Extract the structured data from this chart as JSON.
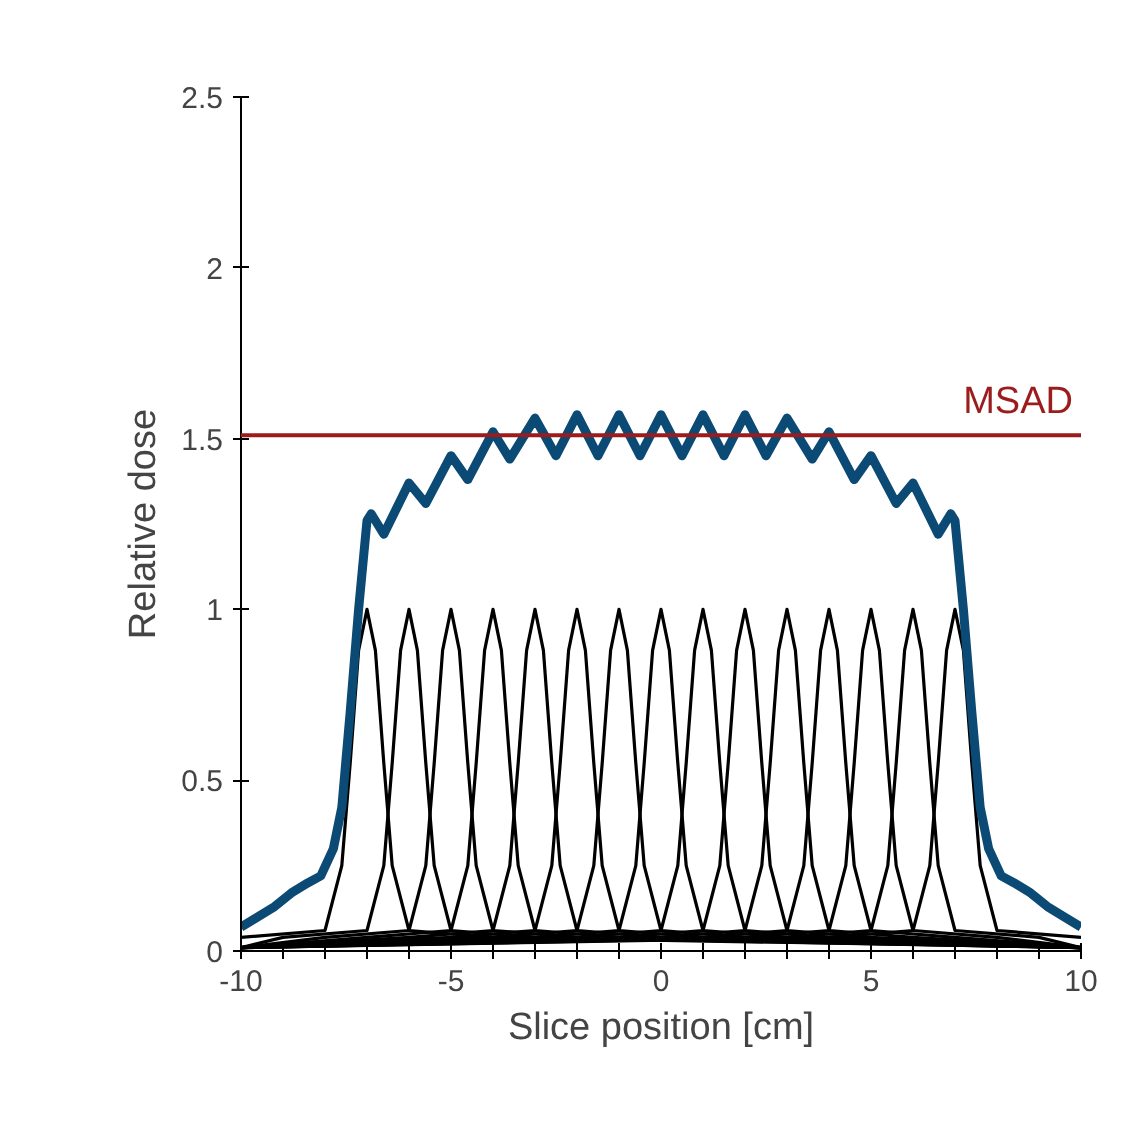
{
  "chart_data": {
    "type": "line",
    "xlabel": "Slice position [cm]",
    "ylabel": "Relative dose",
    "xlim": [
      -10,
      10
    ],
    "ylim": [
      0,
      2.5
    ],
    "xticks": [
      -10,
      {
        "value": -9,
        "label": null
      },
      {
        "value": -8,
        "label": null
      },
      {
        "value": -7,
        "label": null
      },
      {
        "value": -6,
        "label": null
      },
      -5,
      {
        "value": -4,
        "label": null
      },
      {
        "value": -3,
        "label": null
      },
      {
        "value": -2,
        "label": null
      },
      {
        "value": -1,
        "label": null
      },
      0,
      {
        "value": 1,
        "label": null
      },
      {
        "value": 2,
        "label": null
      },
      {
        "value": 3,
        "label": null
      },
      {
        "value": 4,
        "label": null
      },
      5,
      {
        "value": 6,
        "label": null
      },
      {
        "value": 7,
        "label": null
      },
      {
        "value": 8,
        "label": null
      },
      {
        "value": 9,
        "label": null
      },
      10
    ],
    "yticks": [
      0,
      0.5,
      1,
      1.5,
      2,
      2.5
    ],
    "marker": "none",
    "line_style": "solid",
    "ref_lines": [
      {
        "axis": "y",
        "value": 1.51,
        "label": "MSAD",
        "color": "#9b1c1c"
      }
    ],
    "series": [
      {
        "color": "#000000",
        "x": [
          -10,
          -8,
          -7.6,
          -7.4,
          -7.2,
          -7,
          -6.8,
          -6.6,
          -6.4,
          -6,
          -4,
          10
        ],
        "values": [
          0.04,
          0.06,
          0.25,
          0.55,
          0.88,
          1,
          0.88,
          0.55,
          0.25,
          0.06,
          0.04,
          0.01
        ]
      },
      {
        "color": "#000000",
        "x": [
          -10,
          -9,
          -7,
          -6.6,
          -6.4,
          -6.2,
          -6,
          -5.8,
          -5.6,
          -5.4,
          -5,
          -3,
          10
        ],
        "values": [
          0.01,
          0.04,
          0.06,
          0.25,
          0.55,
          0.88,
          1,
          0.88,
          0.55,
          0.25,
          0.06,
          0.04,
          0.01
        ]
      },
      {
        "color": "#000000",
        "x": [
          -10,
          -8,
          -6,
          -5.6,
          -5.4,
          -5.2,
          -5,
          -4.8,
          -4.6,
          -4.4,
          -4,
          -2,
          10
        ],
        "values": [
          0.01,
          0.04,
          0.06,
          0.25,
          0.55,
          0.88,
          1,
          0.88,
          0.55,
          0.25,
          0.06,
          0.04,
          0.01
        ]
      },
      {
        "color": "#000000",
        "x": [
          -10,
          -7,
          -5,
          -4.6,
          -4.4,
          -4.2,
          -4,
          -3.8,
          -3.6,
          -3.4,
          -3,
          -1,
          10
        ],
        "values": [
          0.01,
          0.04,
          0.06,
          0.25,
          0.55,
          0.88,
          1,
          0.88,
          0.55,
          0.25,
          0.06,
          0.04,
          0.01
        ]
      },
      {
        "color": "#000000",
        "x": [
          -10,
          -6,
          -4,
          -3.6,
          -3.4,
          -3.2,
          -3,
          -2.8,
          -2.6,
          -2.4,
          -2,
          0,
          10
        ],
        "values": [
          0.01,
          0.04,
          0.06,
          0.25,
          0.55,
          0.88,
          1,
          0.88,
          0.55,
          0.25,
          0.06,
          0.04,
          0.01
        ]
      },
      {
        "color": "#000000",
        "x": [
          -10,
          -5,
          -3,
          -2.6,
          -2.4,
          -2.2,
          -2,
          -1.8,
          -1.6,
          -1.4,
          -1,
          1,
          10
        ],
        "values": [
          0.01,
          0.04,
          0.06,
          0.25,
          0.55,
          0.88,
          1,
          0.88,
          0.55,
          0.25,
          0.06,
          0.04,
          0.01
        ]
      },
      {
        "color": "#000000",
        "x": [
          -10,
          -4,
          -2,
          -1.6,
          -1.4,
          -1.2,
          -1,
          -0.8,
          -0.6,
          -0.4,
          0,
          2,
          10
        ],
        "values": [
          0.01,
          0.04,
          0.06,
          0.25,
          0.55,
          0.88,
          1,
          0.88,
          0.55,
          0.25,
          0.06,
          0.04,
          0.01
        ]
      },
      {
        "color": "#000000",
        "x": [
          -10,
          -3,
          -1,
          -0.6,
          -0.4,
          -0.2,
          0,
          0.2,
          0.4,
          0.6,
          1,
          3,
          10
        ],
        "values": [
          0.01,
          0.04,
          0.06,
          0.25,
          0.55,
          0.88,
          1,
          0.88,
          0.55,
          0.25,
          0.06,
          0.04,
          0.01
        ]
      },
      {
        "color": "#000000",
        "x": [
          -10,
          -2,
          0,
          0.4,
          0.6,
          0.8,
          1,
          1.2,
          1.4,
          1.6,
          2,
          4,
          10
        ],
        "values": [
          0.01,
          0.04,
          0.06,
          0.25,
          0.55,
          0.88,
          1,
          0.88,
          0.55,
          0.25,
          0.06,
          0.04,
          0.01
        ]
      },
      {
        "color": "#000000",
        "x": [
          -10,
          -1,
          1,
          1.4,
          1.6,
          1.8,
          2,
          2.2,
          2.4,
          2.6,
          3,
          5,
          10
        ],
        "values": [
          0.01,
          0.04,
          0.06,
          0.25,
          0.55,
          0.88,
          1,
          0.88,
          0.55,
          0.25,
          0.06,
          0.04,
          0.01
        ]
      },
      {
        "color": "#000000",
        "x": [
          -10,
          0,
          2,
          2.4,
          2.6,
          2.8,
          3,
          3.2,
          3.4,
          3.6,
          4,
          6,
          10
        ],
        "values": [
          0.01,
          0.04,
          0.06,
          0.25,
          0.55,
          0.88,
          1,
          0.88,
          0.55,
          0.25,
          0.06,
          0.04,
          0.01
        ]
      },
      {
        "color": "#000000",
        "x": [
          -10,
          1,
          3,
          3.4,
          3.6,
          3.8,
          4,
          4.2,
          4.4,
          4.6,
          5,
          7,
          10
        ],
        "values": [
          0.01,
          0.04,
          0.06,
          0.25,
          0.55,
          0.88,
          1,
          0.88,
          0.55,
          0.25,
          0.06,
          0.04,
          0.01
        ]
      },
      {
        "color": "#000000",
        "x": [
          -10,
          2,
          4,
          4.4,
          4.6,
          4.8,
          5,
          5.2,
          5.4,
          5.6,
          6,
          8,
          10
        ],
        "values": [
          0.01,
          0.04,
          0.06,
          0.25,
          0.55,
          0.88,
          1,
          0.88,
          0.55,
          0.25,
          0.06,
          0.04,
          0.01
        ]
      },
      {
        "color": "#000000",
        "x": [
          -10,
          3,
          5,
          5.4,
          5.6,
          5.8,
          6,
          6.2,
          6.4,
          6.6,
          7,
          9,
          10
        ],
        "values": [
          0.01,
          0.04,
          0.06,
          0.25,
          0.55,
          0.88,
          1,
          0.88,
          0.55,
          0.25,
          0.06,
          0.04,
          0.01
        ]
      },
      {
        "color": "#000000",
        "x": [
          -10,
          4,
          6,
          6.4,
          6.6,
          6.8,
          7,
          7.2,
          7.4,
          7.6,
          8,
          10
        ],
        "values": [
          0.01,
          0.04,
          0.06,
          0.25,
          0.55,
          0.88,
          1,
          0.88,
          0.55,
          0.25,
          0.06,
          0.04
        ]
      },
      {
        "color": "#0b4a74",
        "x": [
          -10,
          -9.6,
          -9.2,
          -8.8,
          -8.4,
          -8.1,
          -7.8,
          -7.6,
          -7.4,
          -7.2,
          -7.0,
          -6.9,
          -6.6,
          -6.0,
          -5.6,
          -5.0,
          -4.6,
          -4.0,
          -3.6,
          -3.0,
          -2.5,
          -2.0,
          -1.5,
          -1.0,
          -0.5,
          0,
          0.5,
          1.0,
          1.5,
          2.0,
          2.5,
          3.0,
          3.6,
          4.0,
          4.6,
          5.0,
          5.6,
          6.0,
          6.6,
          6.9,
          7.0,
          7.2,
          7.4,
          7.6,
          7.8,
          8.1,
          8.4,
          8.8,
          9.2,
          9.6,
          10
        ],
        "values": [
          0.07,
          0.1,
          0.13,
          0.17,
          0.2,
          0.22,
          0.3,
          0.42,
          0.7,
          1.0,
          1.26,
          1.28,
          1.22,
          1.37,
          1.31,
          1.45,
          1.38,
          1.52,
          1.44,
          1.56,
          1.45,
          1.57,
          1.45,
          1.57,
          1.45,
          1.57,
          1.45,
          1.57,
          1.45,
          1.57,
          1.45,
          1.56,
          1.44,
          1.52,
          1.38,
          1.45,
          1.31,
          1.37,
          1.22,
          1.28,
          1.26,
          1.0,
          0.7,
          0.42,
          0.3,
          0.22,
          0.2,
          0.17,
          0.13,
          0.1,
          0.07
        ]
      }
    ]
  }
}
